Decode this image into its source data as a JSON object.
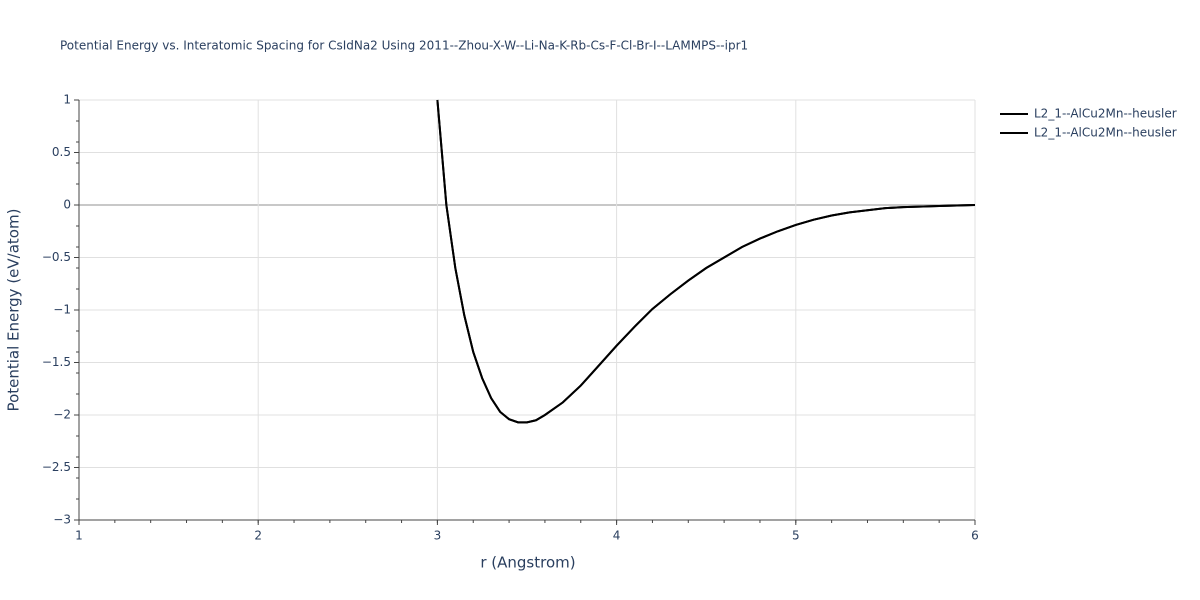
{
  "chart_data": {
    "type": "line",
    "title": "Potential Energy vs. Interatomic Spacing for CsIdNa2 Using 2011--Zhou-X-W--Li-Na-K-Rb-Cs-F-Cl-Br-I--LAMMPS--ipr1",
    "x_label": "r (Angstrom)",
    "y_label": "Potential Energy (eV/atom)",
    "x": [
      3.0,
      3.05,
      3.1,
      3.15,
      3.2,
      3.25,
      3.3,
      3.35,
      3.4,
      3.45,
      3.5,
      3.55,
      3.6,
      3.7,
      3.8,
      3.9,
      4.0,
      4.1,
      4.2,
      4.3,
      4.4,
      4.5,
      4.6,
      4.7,
      4.8,
      4.9,
      5.0,
      5.1,
      5.2,
      5.3,
      5.4,
      5.5,
      5.6,
      5.8,
      6.0
    ],
    "series": [
      {
        "name": "L2_1--AlCu2Mn--heusler",
        "color": "#000000",
        "values": [
          1.0,
          0.0,
          -0.6,
          -1.05,
          -1.4,
          -1.65,
          -1.84,
          -1.97,
          -2.04,
          -2.07,
          -2.07,
          -2.05,
          -2.0,
          -1.88,
          -1.72,
          -1.53,
          -1.34,
          -1.16,
          -0.99,
          -0.85,
          -0.72,
          -0.6,
          -0.5,
          -0.4,
          -0.32,
          -0.25,
          -0.19,
          -0.14,
          -0.1,
          -0.07,
          -0.05,
          -0.03,
          -0.02,
          -0.01,
          0.0
        ]
      },
      {
        "name": "L2_1--AlCu2Mn--heusler",
        "color": "#000000",
        "values": [
          1.0,
          0.0,
          -0.6,
          -1.05,
          -1.4,
          -1.65,
          -1.84,
          -1.97,
          -2.04,
          -2.07,
          -2.07,
          -2.05,
          -2.0,
          -1.88,
          -1.72,
          -1.53,
          -1.34,
          -1.16,
          -0.99,
          -0.85,
          -0.72,
          -0.6,
          -0.5,
          -0.4,
          -0.32,
          -0.25,
          -0.19,
          -0.14,
          -0.1,
          -0.07,
          -0.05,
          -0.03,
          -0.02,
          -0.01,
          0.0
        ]
      }
    ],
    "xlim": [
      1,
      6
    ],
    "ylim": [
      -3,
      1
    ],
    "xticks": [
      1,
      2,
      3,
      4,
      5,
      6
    ],
    "yticks": [
      {
        "value": -3,
        "label": "−3"
      },
      {
        "value": -2.5,
        "label": "−2.5"
      },
      {
        "value": -2,
        "label": "−2"
      },
      {
        "value": -1.5,
        "label": "−1.5"
      },
      {
        "value": -1,
        "label": "−1"
      },
      {
        "value": -0.5,
        "label": "−0.5"
      },
      0,
      0.5,
      1
    ],
    "grid": true,
    "legend": "top-right"
  }
}
